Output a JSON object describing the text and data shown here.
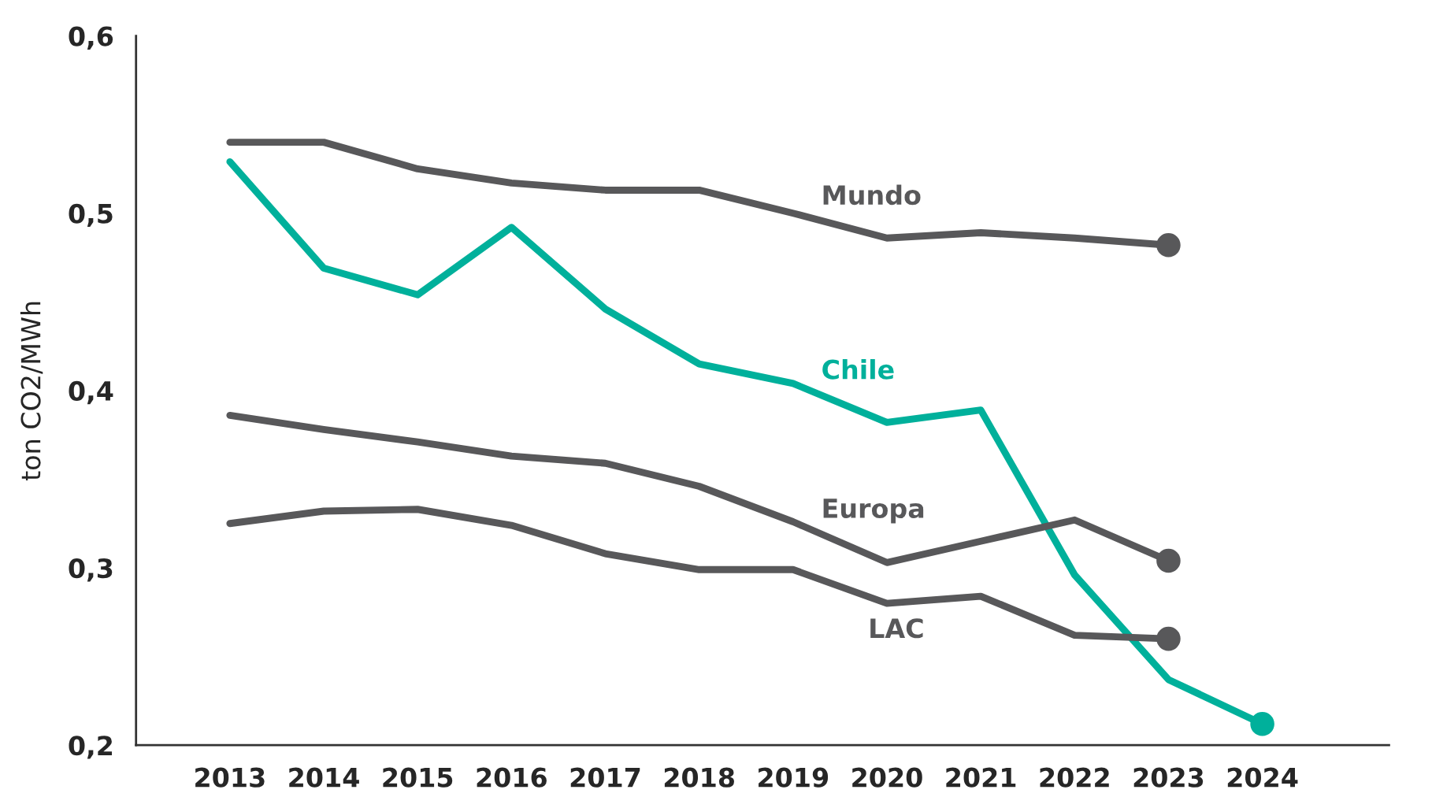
{
  "chart_data": {
    "type": "line",
    "ylabel": "ton CO2/MWh",
    "categories": [
      "2013",
      "2014",
      "2015",
      "2016",
      "2017",
      "2018",
      "2019",
      "2020",
      "2021",
      "2022",
      "2023",
      "2024"
    ],
    "series": [
      {
        "name": "Mundo",
        "color": "#58585a",
        "values": [
          0.54,
          0.54,
          0.525,
          0.517,
          0.513,
          0.513,
          0.5,
          0.486,
          0.489,
          0.486,
          0.482,
          null
        ]
      },
      {
        "name": "Chile",
        "color": "#00b09b",
        "values": [
          0.529,
          0.469,
          0.454,
          0.492,
          0.446,
          0.415,
          0.404,
          0.382,
          0.389,
          0.296,
          0.237,
          0.212
        ]
      },
      {
        "name": "Europa",
        "color": "#58585a",
        "values": [
          0.386,
          0.378,
          0.371,
          0.363,
          0.359,
          0.346,
          0.326,
          0.303,
          0.315,
          0.327,
          0.304,
          null
        ]
      },
      {
        "name": "LAC",
        "color": "#58585a",
        "values": [
          0.325,
          0.332,
          0.333,
          0.324,
          0.308,
          0.299,
          0.299,
          0.28,
          0.284,
          0.262,
          0.26,
          null
        ]
      }
    ],
    "ylim": [
      0.2,
      0.6
    ],
    "yticks": [
      {
        "value": 0.2,
        "label": "0,2"
      },
      {
        "value": 0.3,
        "label": "0,3"
      },
      {
        "value": 0.4,
        "label": "0,4"
      },
      {
        "value": 0.5,
        "label": "0,5"
      },
      {
        "value": 0.6,
        "label": "0,6"
      }
    ],
    "grid": false,
    "legend": false,
    "line_style": "solid",
    "marker": "none"
  }
}
